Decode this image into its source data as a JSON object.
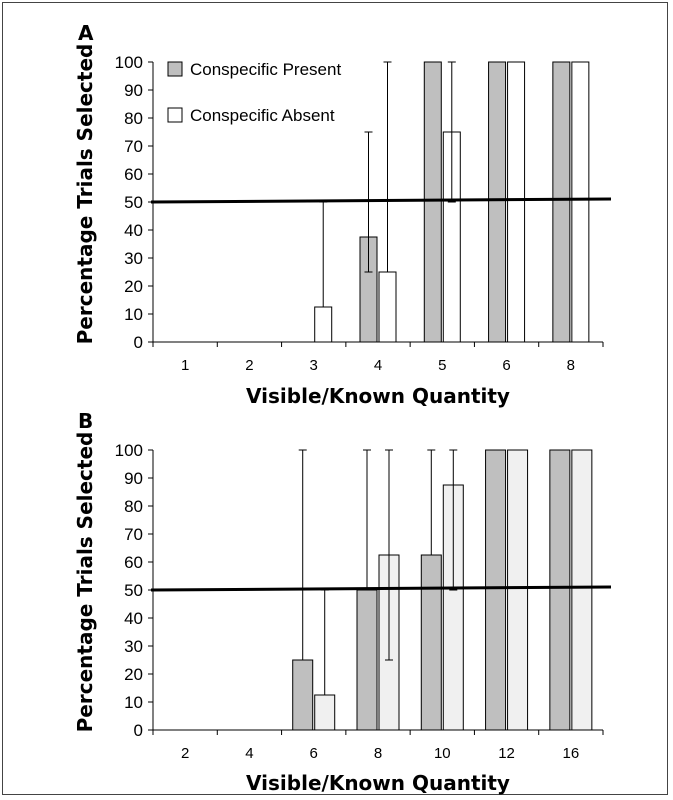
{
  "chart_data": [
    {
      "type": "bar",
      "panel_label": "A",
      "title": "",
      "xlabel": "Visible/Known Quantity",
      "ylabel": "Percentage Trials Selected",
      "ylim": [
        0,
        100
      ],
      "yticks": [
        "0",
        "10",
        "20",
        "30",
        "40",
        "50",
        "60",
        "70",
        "80",
        "90",
        "100"
      ],
      "categories": [
        "1",
        "2",
        "3",
        "4",
        "5",
        "6",
        "8"
      ],
      "reference_line": 50,
      "legend": {
        "placement": "top-left"
      },
      "series": [
        {
          "name": "Conspecific Present",
          "color": "#bfbfbf",
          "values": [
            0,
            0,
            0,
            37.5,
            100,
            100,
            100
          ],
          "error_low": [
            null,
            null,
            null,
            25,
            null,
            null,
            null
          ],
          "error_high": [
            null,
            null,
            null,
            75,
            null,
            null,
            null
          ]
        },
        {
          "name": "Conspecific Absent",
          "color": "#ffffff",
          "values": [
            0,
            0,
            12.5,
            25,
            75,
            100,
            100
          ],
          "error_low": [
            null,
            null,
            null,
            null,
            50,
            null,
            null
          ],
          "error_high": [
            null,
            null,
            50,
            100,
            100,
            null,
            null
          ]
        }
      ]
    },
    {
      "type": "bar",
      "panel_label": "B",
      "title": "",
      "xlabel": "Visible/Known Quantity",
      "ylabel": "Percentage Trials Selected",
      "ylim": [
        0,
        100
      ],
      "yticks": [
        "0",
        "10",
        "20",
        "30",
        "40",
        "50",
        "60",
        "70",
        "80",
        "90",
        "100"
      ],
      "categories": [
        "2",
        "4",
        "6",
        "8",
        "10",
        "12",
        "16"
      ],
      "reference_line": 50,
      "series": [
        {
          "color": "#bfbfbf",
          "values": [
            0,
            0,
            25,
            50,
            62.5,
            100,
            100
          ],
          "error_low": [
            null,
            null,
            null,
            null,
            null,
            null,
            null
          ],
          "error_high": [
            null,
            null,
            100,
            100,
            100,
            null,
            null
          ]
        },
        {
          "color": "#f0f0f0",
          "values": [
            0,
            0,
            12.5,
            62.5,
            87.5,
            100,
            100
          ],
          "error_low": [
            null,
            null,
            null,
            25,
            50,
            null,
            null
          ],
          "error_high": [
            null,
            null,
            50,
            100,
            100,
            null,
            null
          ]
        }
      ]
    }
  ]
}
